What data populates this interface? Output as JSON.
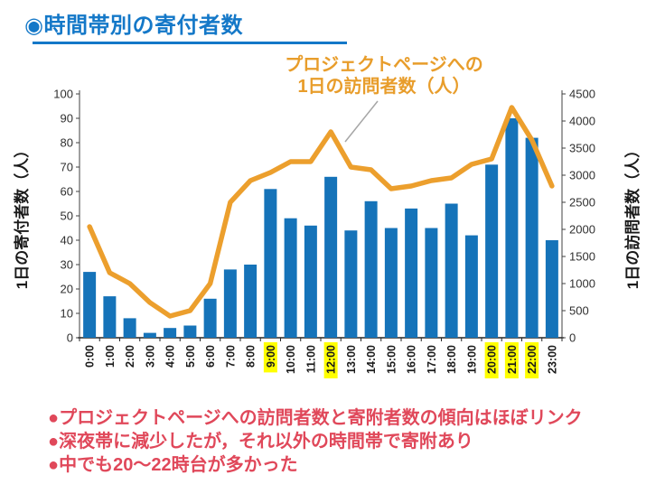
{
  "title": "◉時間帯別の寄付者数",
  "annotation": {
    "line1": "プロジェクトページへの",
    "line2": "1日の訪問者数（人）"
  },
  "bullets": [
    "●プロジェクトページへの訪問者数と寄附者数の傾向はほぼリンク",
    "●深夜帯に減少したが，それ以外の時間帯で寄附あり",
    "●中でも20～22時台が多かった"
  ],
  "colors": {
    "title_blue": "#1478C8",
    "bar_blue": "#1573B9",
    "line_orange": "#EC9F2D",
    "bullet_red": "#E0485A",
    "highlight_yellow": "#FFFF00",
    "leader_gray": "#A6A6A6",
    "axis_text": "#303030",
    "axis_line": "#404040"
  },
  "chart_data": {
    "type": "bar",
    "subtype": "bar+line combo, dual axis",
    "categories": [
      "0:00",
      "1:00",
      "2:00",
      "3:00",
      "4:00",
      "5:00",
      "6:00",
      "7:00",
      "8:00",
      "9:00",
      "10:00",
      "11:00",
      "12:00",
      "13:00",
      "14:00",
      "15:00",
      "16:00",
      "17:00",
      "18:00",
      "19:00",
      "20:00",
      "21:00",
      "22:00",
      "23:00"
    ],
    "series": [
      {
        "name": "1日の寄付者数",
        "type": "bar",
        "axis": "left",
        "values": [
          27,
          17,
          8,
          2,
          4,
          5,
          16,
          28,
          30,
          61,
          49,
          46,
          66,
          44,
          56,
          45,
          53,
          45,
          55,
          42,
          71,
          90,
          82,
          40
        ]
      },
      {
        "name": "プロジェクトページへの1日の訪問者数",
        "type": "line",
        "axis": "right",
        "values": [
          2050,
          1200,
          1000,
          650,
          400,
          500,
          1000,
          2500,
          2900,
          3050,
          3250,
          3250,
          3800,
          3150,
          3100,
          2750,
          2800,
          2900,
          2950,
          3200,
          3300,
          4250,
          3650,
          2800
        ]
      }
    ],
    "left_axis": {
      "label": "1日の寄付者数（人）",
      "min": 0,
      "max": 100,
      "step": 10
    },
    "right_axis": {
      "label": "1日の訪問者数（人）",
      "min": 0,
      "max": 4500,
      "step": 500
    },
    "highlighted_categories": [
      "9:00",
      "12:00",
      "20:00",
      "21:00",
      "22:00"
    ],
    "grid": false,
    "legend": "none (orange text callout points to 12:00 peak of line)"
  }
}
